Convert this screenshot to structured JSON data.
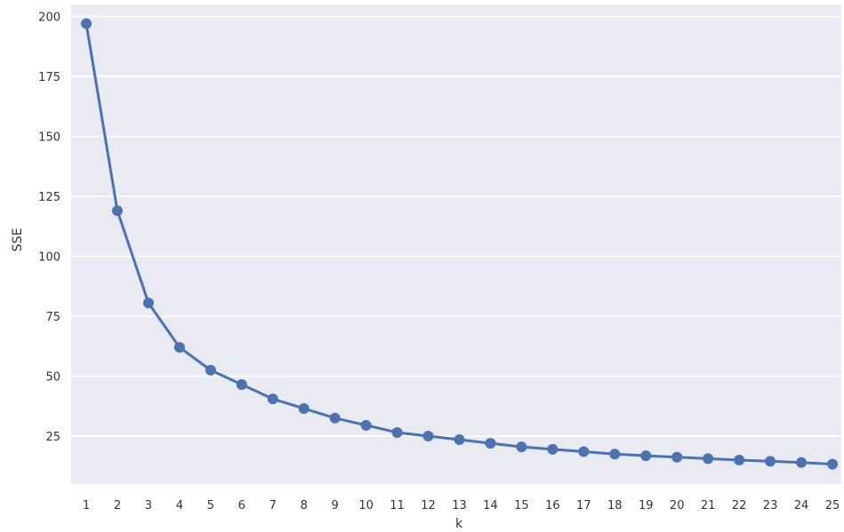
{
  "chart_data": {
    "type": "line",
    "xlabel": "k",
    "ylabel": "SSE",
    "x": [
      "1",
      "2",
      "3",
      "4",
      "5",
      "6",
      "7",
      "8",
      "9",
      "10",
      "11",
      "12",
      "13",
      "14",
      "15",
      "16",
      "17",
      "18",
      "19",
      "20",
      "21",
      "22",
      "23",
      "24",
      "25"
    ],
    "series": [
      {
        "values": [
          197,
          119,
          80.5,
          62,
          52.5,
          46.5,
          40.5,
          36.5,
          32.5,
          29.5,
          26.5,
          25,
          23.5,
          22,
          20.5,
          19.5,
          18.5,
          17.5,
          16.8,
          16.2,
          15.6,
          15,
          14.5,
          14,
          13.3
        ]
      }
    ],
    "yticks": [
      25,
      50,
      75,
      100,
      125,
      150,
      175,
      200
    ],
    "ylim": [
      5,
      205
    ],
    "grid": true,
    "colors": {
      "line": "#4c72b0",
      "background": "#eaeaf2",
      "grid": "#ffffff"
    }
  }
}
